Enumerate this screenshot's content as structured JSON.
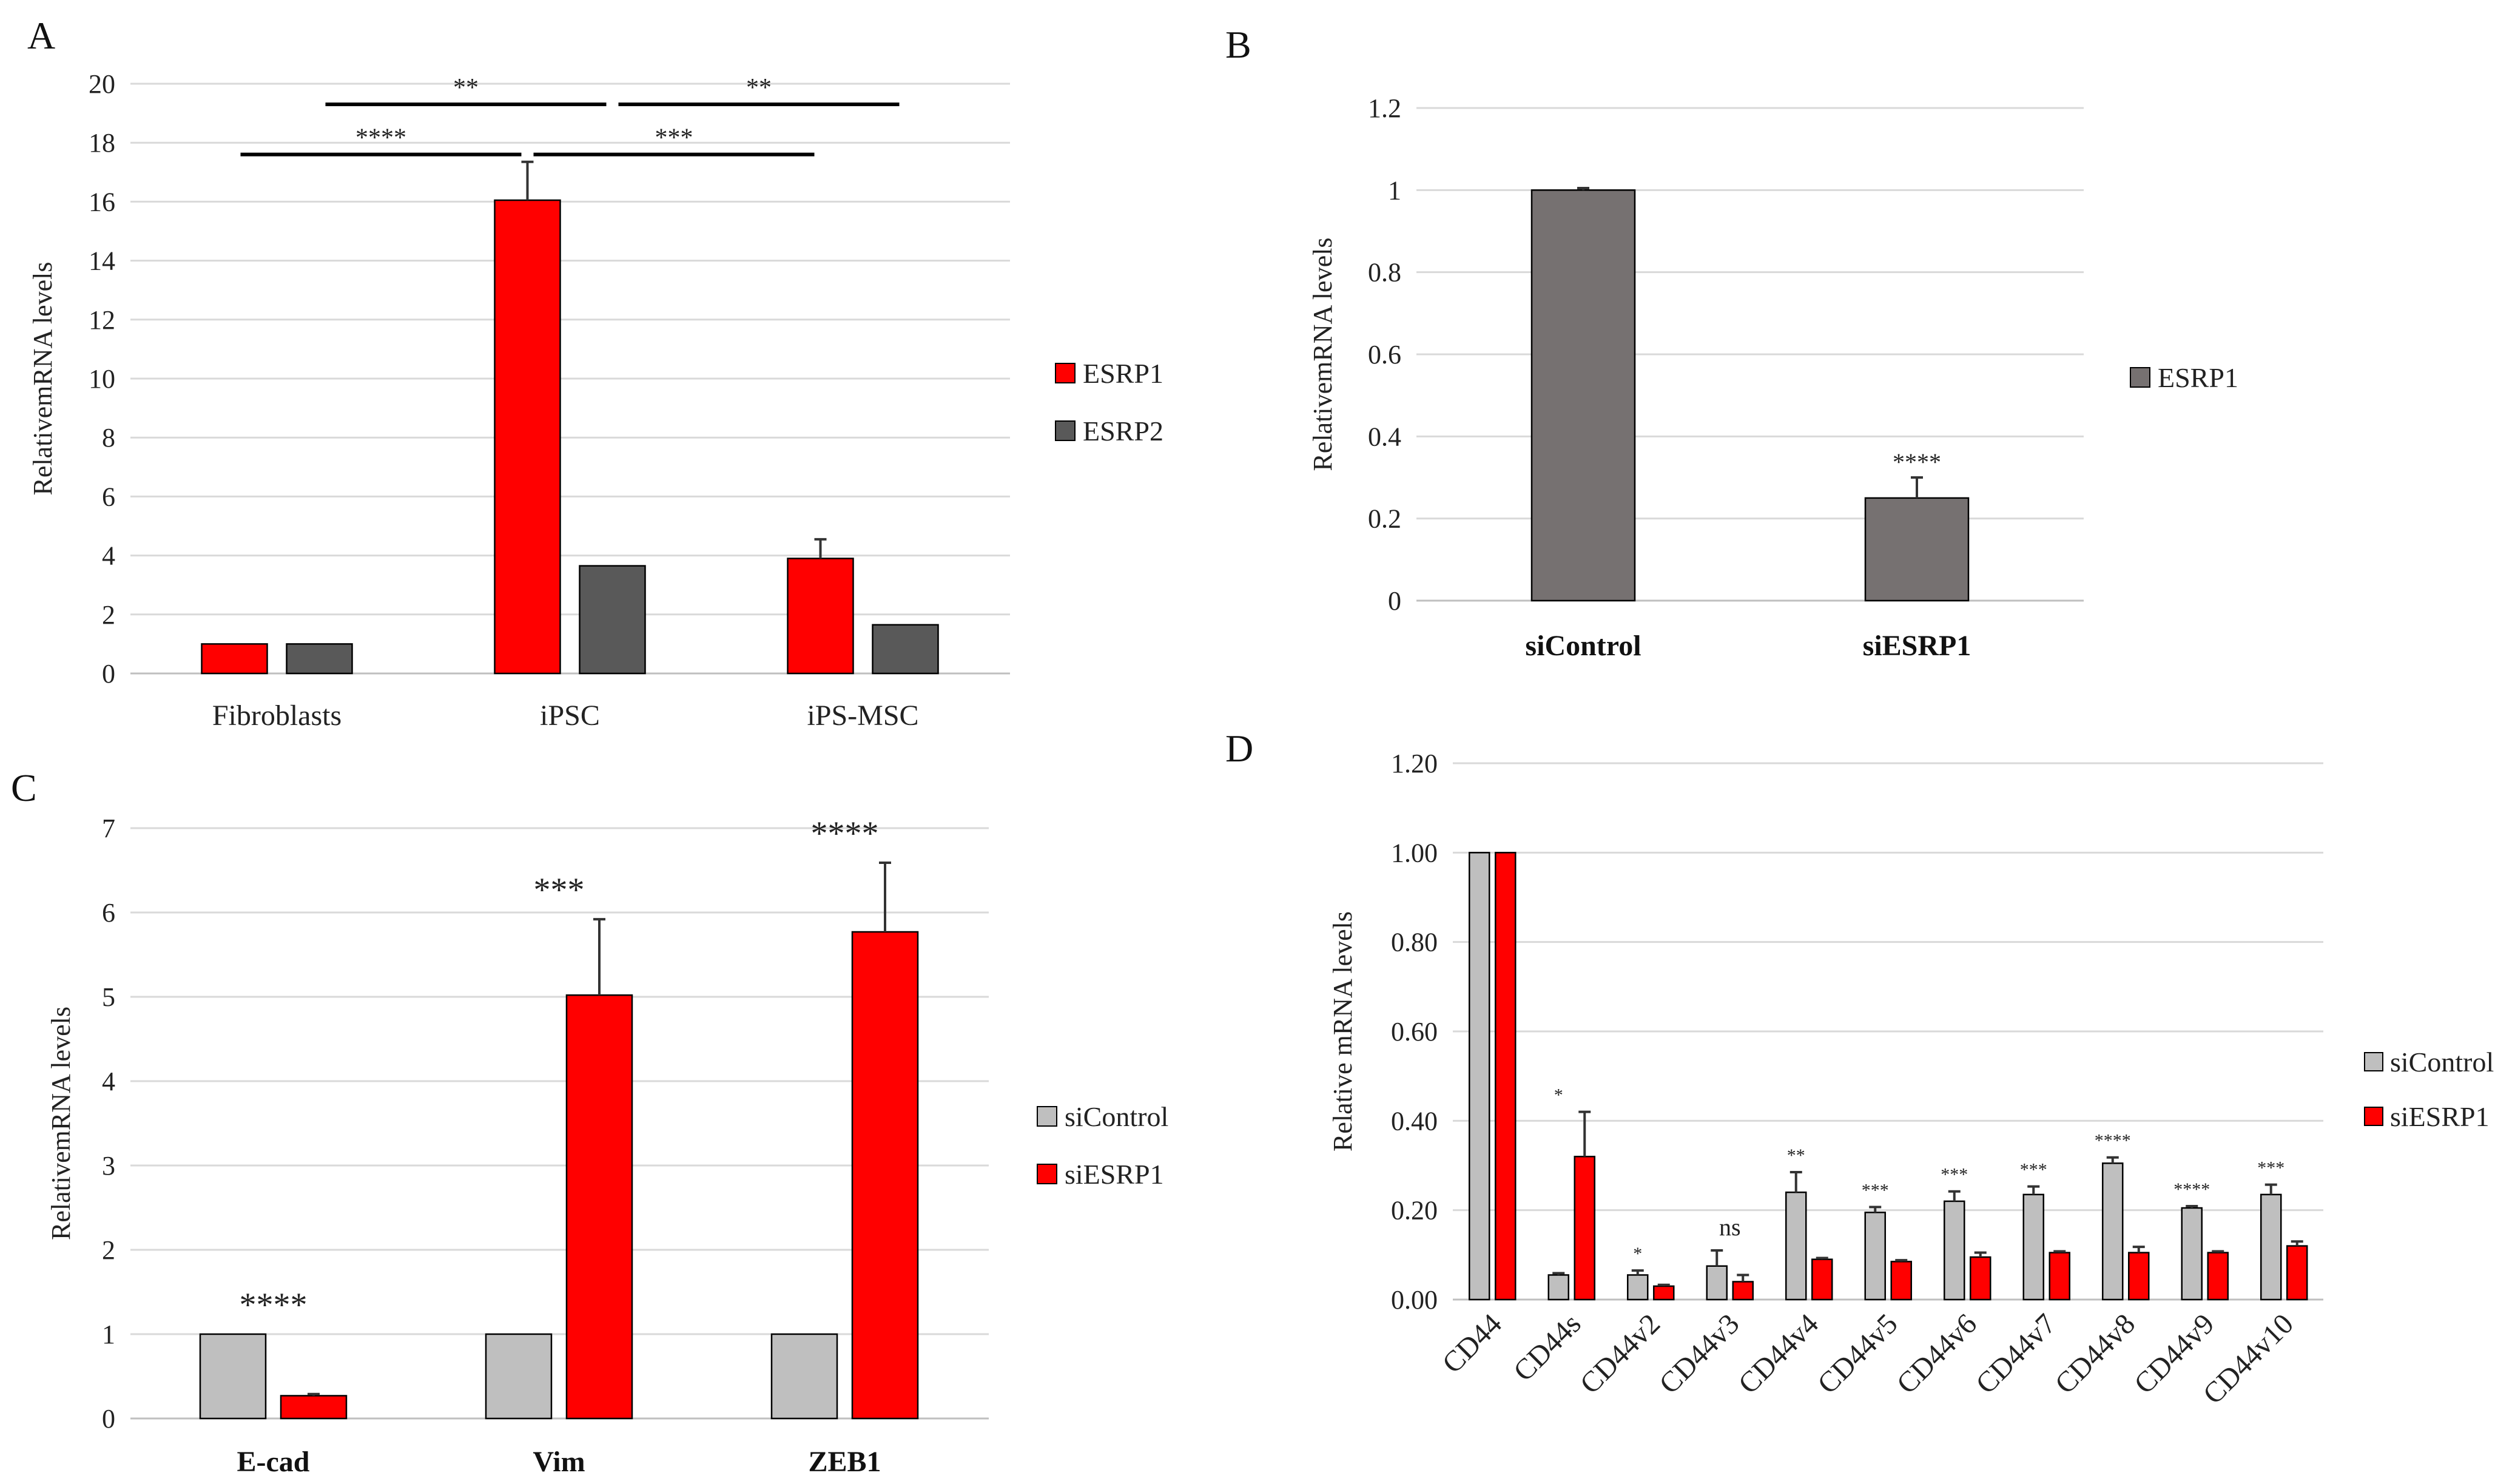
{
  "colors": {
    "esrp1_red": "#ff0000",
    "esrp2_dark": "#595959",
    "sicontrol_gray": "#bfbfbf",
    "brown_gray": "#767171"
  },
  "chart_data": [
    {
      "panel": "A",
      "type": "bar",
      "title": "",
      "xlabel": "",
      "ylabel": "RelativemRNA levels",
      "ylim": [
        0,
        20
      ],
      "yticks": [
        "0",
        "2",
        "4",
        "6",
        "8",
        "10",
        "12",
        "14",
        "16",
        "18",
        "20"
      ],
      "categories": [
        "Fibroblasts",
        "iPSC",
        "iPS-MSC"
      ],
      "series": [
        {
          "name": "ESRP1",
          "color": "#ff0000",
          "values": [
            1.0,
            16.05,
            3.9
          ],
          "errors": [
            0,
            1.3,
            0.65
          ]
        },
        {
          "name": "ESRP2",
          "color": "#595959",
          "values": [
            1.0,
            3.65,
            1.65
          ],
          "errors": [
            0,
            0,
            0
          ]
        }
      ],
      "legend": [
        "ESRP1",
        "ESRP2"
      ],
      "brackets": [
        {
          "label": "**",
          "from": "Fibroblasts-ESRP2",
          "to": "iPSC-ESRP2",
          "level": 19.3
        },
        {
          "label": "**",
          "from": "iPSC-ESRP2",
          "to": "iPS-MSC-ESRP2",
          "level": 19.3
        },
        {
          "label": "****",
          "from": "Fibroblasts-ESRP1",
          "to": "iPSC-ESRP1",
          "level": 17.6
        },
        {
          "label": "***",
          "from": "iPSC-ESRP1",
          "to": "iPS-MSC-ESRP1",
          "level": 17.6
        }
      ]
    },
    {
      "panel": "B",
      "type": "bar",
      "title": "",
      "xlabel": "",
      "ylabel": "RelativemRNA levels",
      "ylim": [
        0,
        1.2
      ],
      "yticks": [
        "0",
        "0.2",
        "0.4",
        "0.6",
        "0.8",
        "1",
        "1.2"
      ],
      "categories": [
        "siControl",
        "siESRP1"
      ],
      "series": [
        {
          "name": "ESRP1",
          "color": "#767171",
          "values": [
            1.0,
            0.25
          ],
          "errors": [
            0.005,
            0.05
          ]
        }
      ],
      "legend": [
        "ESRP1"
      ],
      "annotations": [
        "",
        "****"
      ]
    },
    {
      "panel": "C",
      "type": "bar",
      "title": "",
      "xlabel": "",
      "ylabel": "RelativemRNA levels",
      "ylim": [
        0,
        7
      ],
      "yticks": [
        "0",
        "1",
        "2",
        "3",
        "4",
        "5",
        "6",
        "7"
      ],
      "categories": [
        "E-cad",
        "Vim",
        "ZEB1"
      ],
      "series": [
        {
          "name": "siControl",
          "color": "#bfbfbf",
          "values": [
            1.0,
            1.0,
            1.0
          ],
          "errors": [
            0,
            0,
            0
          ]
        },
        {
          "name": "siESRP1",
          "color": "#ff0000",
          "values": [
            0.27,
            5.02,
            5.77
          ],
          "errors": [
            0.02,
            0.9,
            0.82
          ]
        }
      ],
      "legend": [
        "siControl",
        "siESRP1"
      ],
      "annotations": [
        "****",
        "***",
        "****"
      ]
    },
    {
      "panel": "D",
      "type": "bar",
      "title": "",
      "xlabel": "",
      "ylabel": "Relative mRNA levels",
      "ylim": [
        0,
        1.2
      ],
      "yticks": [
        "0.00",
        "0.20",
        "0.40",
        "0.60",
        "0.80",
        "1.00",
        "1.20"
      ],
      "categories": [
        "CD44",
        "CD44s",
        "CD44v2",
        "CD44v3",
        "CD44v4",
        "CD44v5",
        "CD44v6",
        "CD44v7",
        "CD44v8",
        "CD44v9",
        "CD44v10"
      ],
      "series": [
        {
          "name": "siControl",
          "color": "#bfbfbf",
          "values": [
            1.0,
            0.055,
            0.055,
            0.075,
            0.24,
            0.195,
            0.22,
            0.235,
            0.305,
            0.205,
            0.235
          ],
          "errors": [
            0,
            0.004,
            0.01,
            0.035,
            0.045,
            0.012,
            0.022,
            0.018,
            0.013,
            0.004,
            0.022
          ]
        },
        {
          "name": "siESRP1",
          "color": "#ff0000",
          "values": [
            1.0,
            0.32,
            0.03,
            0.04,
            0.09,
            0.085,
            0.095,
            0.105,
            0.105,
            0.105,
            0.12
          ],
          "errors": [
            0,
            0.1,
            0.003,
            0.015,
            0.003,
            0.003,
            0.01,
            0.003,
            0.013,
            0.003,
            0.01
          ]
        }
      ],
      "legend": [
        "siControl",
        "siESRP1"
      ],
      "annotations": [
        "",
        "*",
        "*",
        "ns",
        "**",
        "***",
        "***",
        "***",
        "****",
        "****",
        "***"
      ]
    }
  ]
}
